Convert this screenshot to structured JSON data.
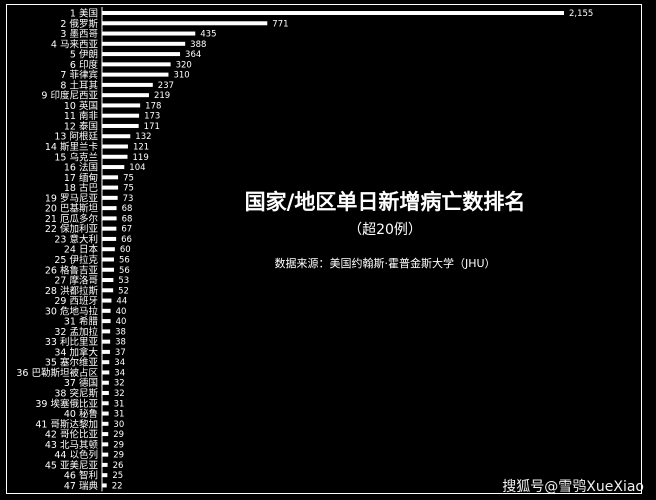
{
  "title": "国家/地区单日新增病亡数排名",
  "subtitle": "（超20例）",
  "source": "数据来源：美国约翰斯·霍普金斯大学（JHU）",
  "watermark": "搜狐号@雪鸮XueXiao",
  "colors": {
    "background": "#000000",
    "bar": "#ffffff",
    "text": "#ffffff"
  },
  "chart_data": {
    "type": "bar",
    "orientation": "horizontal",
    "categories": [
      "1 美国",
      "2 俄罗斯",
      "3 墨西哥",
      "4 马来西亚",
      "5 伊朗",
      "6 印度",
      "7 菲律宾",
      "8 土耳其",
      "9 印度尼西亚",
      "10 英国",
      "11 南非",
      "12 泰国",
      "13 阿根廷",
      "14 斯里兰卡",
      "15 乌克兰",
      "16 法国",
      "17 缅甸",
      "18 古巴",
      "19 罗马尼亚",
      "20 巴基斯坦",
      "21 厄瓜多尔",
      "22 保加利亚",
      "23 意大利",
      "24 日本",
      "25 伊拉克",
      "26 格鲁吉亚",
      "27 摩洛哥",
      "28 洪都拉斯",
      "29 西班牙",
      "30 危地马拉",
      "31 希腊",
      "32 孟加拉",
      "33 利比里亚",
      "34 加拿大",
      "35 塞尔维亚",
      "36 巴勒斯坦被占区",
      "37 德国",
      "38 突尼斯",
      "39 埃塞俄比亚",
      "40 秘鲁",
      "41 哥斯达黎加",
      "42 哥伦比亚",
      "43 北马其顿",
      "44 以色列",
      "45 亚美尼亚",
      "46 智利",
      "47 瑞典"
    ],
    "values": [
      2155,
      771,
      435,
      388,
      364,
      320,
      310,
      237,
      219,
      178,
      173,
      171,
      132,
      121,
      119,
      104,
      75,
      75,
      73,
      68,
      68,
      67,
      66,
      60,
      56,
      56,
      53,
      52,
      44,
      40,
      40,
      38,
      38,
      37,
      34,
      34,
      32,
      32,
      31,
      31,
      30,
      29,
      29,
      29,
      26,
      25,
      22
    ],
    "value_labels": [
      "2,155",
      "771",
      "435",
      "388",
      "364",
      "320",
      "310",
      "237",
      "219",
      "178",
      "173",
      "171",
      "132",
      "121",
      "119",
      "104",
      "75",
      "75",
      "73",
      "68",
      "68",
      "67",
      "66",
      "60",
      "56",
      "56",
      "53",
      "52",
      "44",
      "40",
      "40",
      "38",
      "38",
      "37",
      "34",
      "34",
      "32",
      "32",
      "31",
      "31",
      "30",
      "29",
      "29",
      "29",
      "26",
      "25",
      "22"
    ],
    "xlim": [
      0,
      2155
    ],
    "grid": false,
    "legend": "none"
  }
}
